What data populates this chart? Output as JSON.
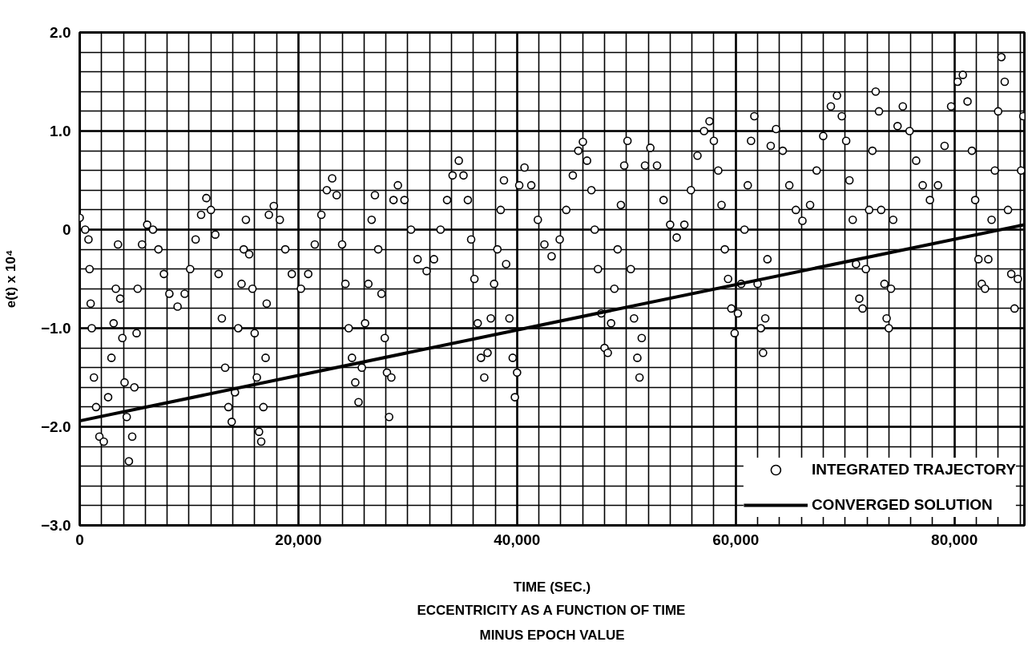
{
  "chart_data": {
    "type": "scatter",
    "title": "ECCENTRICITY AS A FUNCTION OF TIME\nMINUS EPOCH VALUE",
    "xlabel": "TIME (SEC.)",
    "ylabel": "e(t) x 10⁴",
    "xlim": [
      0,
      86400
    ],
    "ylim": [
      -3,
      2
    ],
    "xticks": [
      0,
      {
        "value": 20000,
        "label": "20,000"
      },
      {
        "value": 40000,
        "label": "40,000"
      },
      {
        "value": 60000,
        "label": "60,000"
      },
      {
        "value": 80000,
        "label": "80,000"
      }
    ],
    "yticks": [
      {
        "value": 2,
        "label": "2.0"
      },
      {
        "value": 1,
        "label": "1.0"
      },
      0,
      {
        "value": -1,
        "label": "−1.0"
      },
      {
        "value": -2,
        "label": "−2.0"
      },
      {
        "value": -3,
        "label": "−3.0"
      }
    ],
    "grid": true,
    "legend": "bottom right",
    "series": [
      {
        "name": "INTEGRATED TRAJECTORY",
        "marker": "circle",
        "color": "#000000",
        "x": [
          0,
          500,
          800,
          900,
          1000,
          1100,
          1300,
          1500,
          1800,
          2200,
          2600,
          2900,
          3100,
          3300,
          3500,
          3700,
          3900,
          4100,
          4300,
          4500,
          4800,
          5000,
          5200,
          5300,
          5700,
          6170,
          6700,
          7200,
          7700,
          8200,
          8950,
          9600,
          10100,
          10600,
          11100,
          11580,
          12000,
          12400,
          12700,
          13000,
          13300,
          13600,
          13900,
          14200,
          14500,
          14800,
          15000,
          15200,
          15500,
          15800,
          16000,
          16200,
          16400,
          16600,
          16800,
          17000,
          17100,
          17300,
          17750,
          18300,
          18800,
          19400,
          20230,
          20900,
          21500,
          22100,
          22600,
          23090,
          23500,
          24000,
          24300,
          24600,
          24900,
          25200,
          25500,
          25800,
          26100,
          26400,
          26700,
          27000,
          27300,
          27600,
          27900,
          28100,
          28300,
          28500,
          28700,
          29100,
          29700,
          30300,
          30900,
          31730,
          32400,
          33000,
          33600,
          34100,
          34670,
          35100,
          35500,
          35800,
          36100,
          36400,
          36700,
          37000,
          37300,
          37600,
          37900,
          38200,
          38500,
          38800,
          39000,
          39300,
          39600,
          39800,
          40000,
          40200,
          40680,
          41300,
          41900,
          42500,
          43160,
          43900,
          44500,
          45100,
          45600,
          46020,
          46400,
          46800,
          47100,
          47400,
          47700,
          48000,
          48300,
          48600,
          48900,
          49200,
          49500,
          49800,
          50100,
          50400,
          50700,
          51000,
          51200,
          51400,
          51700,
          52190,
          52800,
          53400,
          54000,
          54600,
          55300,
          55900,
          56500,
          57100,
          57600,
          58000,
          58400,
          58700,
          59000,
          59300,
          59600,
          59900,
          60200,
          60500,
          60800,
          61100,
          61400,
          61700,
          62000,
          62300,
          62500,
          62700,
          62900,
          63200,
          63690,
          64300,
          64900,
          65500,
          66100,
          66800,
          67400,
          68000,
          68700,
          69260,
          69700,
          70100,
          70400,
          70700,
          71000,
          71300,
          71600,
          71900,
          72200,
          72500,
          72800,
          73100,
          73300,
          73600,
          73800,
          74000,
          74200,
          74400,
          74800,
          75280,
          75900,
          76500,
          77100,
          77760,
          78500,
          79100,
          79700,
          80300,
          80770,
          81200,
          81600,
          81900,
          82200,
          82500,
          82800,
          83100,
          83400,
          83700,
          84000,
          84300,
          84600,
          84900,
          85200,
          85500,
          85800,
          86100,
          86300
        ],
        "values": [
          0.12,
          0.0,
          -0.1,
          -0.4,
          -0.75,
          -1.0,
          -1.5,
          -1.8,
          -2.1,
          -2.15,
          -1.7,
          -1.3,
          -0.95,
          -0.6,
          -0.15,
          -0.7,
          -1.1,
          -1.55,
          -1.9,
          -2.35,
          -2.1,
          -1.6,
          -1.05,
          -0.6,
          -0.15,
          0.05,
          0.0,
          -0.2,
          -0.45,
          -0.65,
          -0.78,
          -0.65,
          -0.4,
          -0.1,
          0.15,
          0.32,
          0.2,
          -0.05,
          -0.45,
          -0.9,
          -1.4,
          -1.8,
          -1.95,
          -1.65,
          -1.0,
          -0.55,
          -0.2,
          0.1,
          -0.25,
          -0.6,
          -1.05,
          -1.5,
          -2.05,
          -2.15,
          -1.8,
          -1.3,
          -0.75,
          0.15,
          0.24,
          0.1,
          -0.2,
          -0.45,
          -0.6,
          -0.45,
          -0.15,
          0.15,
          0.4,
          0.52,
          0.35,
          -0.15,
          -0.55,
          -1.0,
          -1.3,
          -1.55,
          -1.75,
          -1.4,
          -0.95,
          -0.55,
          0.1,
          0.35,
          -0.2,
          -0.65,
          -1.1,
          -1.45,
          -1.9,
          -1.5,
          0.3,
          0.45,
          0.3,
          0.0,
          -0.3,
          -0.42,
          -0.3,
          0.0,
          0.3,
          0.55,
          0.7,
          0.55,
          0.3,
          -0.1,
          -0.5,
          -0.95,
          -1.3,
          -1.5,
          -1.25,
          -0.9,
          -0.55,
          -0.2,
          0.2,
          0.5,
          -0.35,
          -0.9,
          -1.3,
          -1.7,
          -1.45,
          0.45,
          0.63,
          0.45,
          0.1,
          -0.15,
          -0.27,
          -0.1,
          0.2,
          0.55,
          0.8,
          0.89,
          0.7,
          0.4,
          0.0,
          -0.4,
          -0.85,
          -1.2,
          -1.25,
          -0.95,
          -0.6,
          -0.2,
          0.25,
          0.65,
          0.9,
          -0.4,
          -0.9,
          -1.3,
          -1.5,
          -1.1,
          0.65,
          0.83,
          0.65,
          0.3,
          0.05,
          -0.08,
          0.05,
          0.4,
          0.75,
          1.0,
          1.1,
          0.9,
          0.6,
          0.25,
          -0.2,
          -0.5,
          -0.8,
          -1.05,
          -0.85,
          -0.55,
          0.0,
          0.45,
          0.9,
          1.15,
          -0.55,
          -1.0,
          -1.25,
          -0.9,
          -0.3,
          0.85,
          1.02,
          0.8,
          0.45,
          0.2,
          0.09,
          0.25,
          0.6,
          0.95,
          1.25,
          1.36,
          1.15,
          0.9,
          0.5,
          0.1,
          -0.35,
          -0.7,
          -0.8,
          -0.4,
          0.2,
          0.8,
          1.4,
          1.2,
          0.2,
          -0.55,
          -0.9,
          -1.0,
          -0.6,
          0.1,
          1.05,
          1.25,
          1.0,
          0.7,
          0.45,
          0.3,
          0.45,
          0.85,
          1.25,
          1.5,
          1.57,
          1.3,
          0.8,
          0.3,
          -0.3,
          -0.55,
          -0.6,
          -0.3,
          0.1,
          0.6,
          1.2,
          1.75,
          1.5,
          0.2,
          -0.45,
          -0.8,
          -0.5,
          0.6,
          1.15
        ]
      },
      {
        "name": "CONVERGED SOLUTION",
        "type": "line",
        "color": "#000000",
        "x": [
          0,
          86400
        ],
        "values": [
          -1.94,
          0.05
        ]
      }
    ]
  }
}
